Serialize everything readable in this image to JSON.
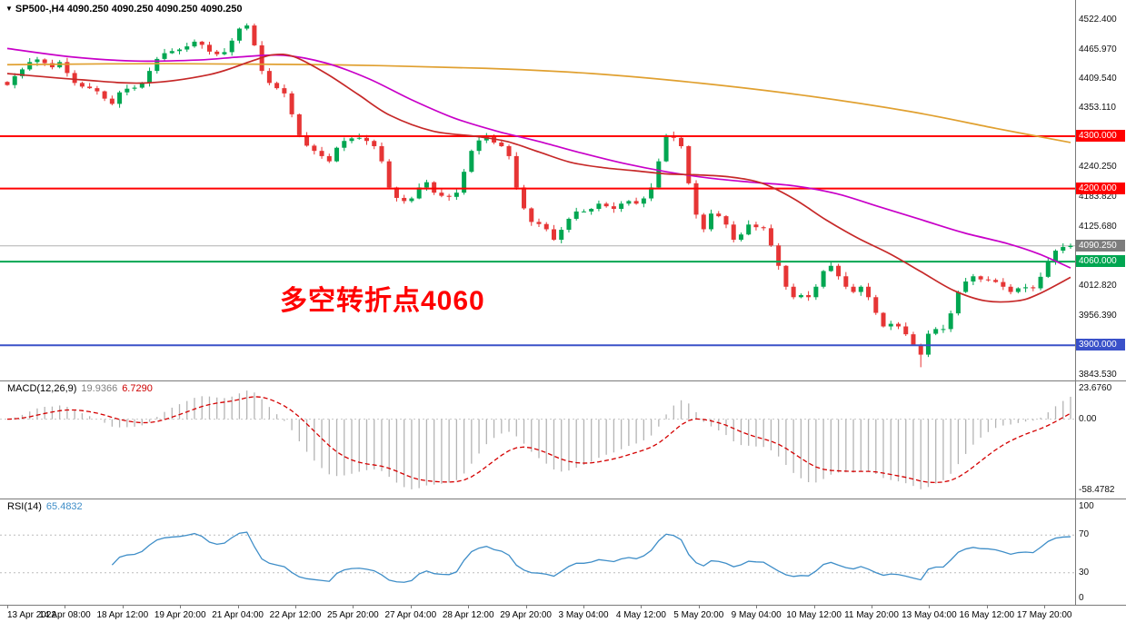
{
  "window": {
    "title_line": "SP500-,H4 4090.250 4090.250 4090.250 4090.250"
  },
  "annotation": {
    "text": "多空转折点4060",
    "color": "#ff0000"
  },
  "axis": {
    "price_ticks": [
      {
        "label": "4522.400",
        "price": 4522.4
      },
      {
        "label": "4465.970",
        "price": 4465.97
      },
      {
        "label": "4409.540",
        "price": 4409.54
      },
      {
        "label": "4353.110",
        "price": 4353.11
      },
      {
        "label": "4240.250",
        "price": 4240.25
      },
      {
        "label": "4183.820",
        "price": 4183.82
      },
      {
        "label": "4125.680",
        "price": 4125.68
      },
      {
        "label": "4012.820",
        "price": 4012.82
      },
      {
        "label": "3956.390",
        "price": 3956.39
      },
      {
        "label": "3843.530",
        "price": 3843.53
      }
    ],
    "price_badges": [
      {
        "label": "4300.000",
        "price": 4300,
        "bg": "#ff0000"
      },
      {
        "label": "4200.000",
        "price": 4200,
        "bg": "#ff0000"
      },
      {
        "label": "4090.250",
        "price": 4090.25,
        "bg": "#7d7d7d"
      },
      {
        "label": "4060.000",
        "price": 4060,
        "bg": "#00a651"
      },
      {
        "label": "3900.000",
        "price": 3900,
        "bg": "#3a51c9"
      }
    ]
  },
  "indicators": {
    "macd": {
      "label": "MACD(12,26,9)",
      "value_main": "19.9366",
      "value_signal": "6.7290",
      "axis_top": "23.6760",
      "axis_zero": "0.00",
      "axis_bottom": "-58.4782"
    },
    "rsi": {
      "label": "RSI(14)",
      "value": "65.4832",
      "axis": [
        "100",
        "70",
        "30",
        "0"
      ]
    }
  },
  "time_axis": {
    "labels": [
      "13 Apr 2022",
      "14 Apr 08:00",
      "18 Apr 12:00",
      "19 Apr 20:00",
      "21 Apr 04:00",
      "22 Apr 12:00",
      "25 Apr 20:00",
      "27 Apr 04:00",
      "28 Apr 12:00",
      "29 Apr 20:00",
      "3 May 04:00",
      "4 May 12:00",
      "5 May 20:00",
      "9 May 04:00",
      "10 May 12:00",
      "11 May 20:00",
      "13 May 04:00",
      "16 May 12:00",
      "17 May 20:00"
    ]
  },
  "chart_data": {
    "type": "candlestick",
    "symbol": "SP500-",
    "timeframe": "H4",
    "last_price": 4090.25,
    "ylim": [
      3832.6,
      4543.4
    ],
    "up_color": "#00a651",
    "down_color": "#e63535",
    "closes": [
      4398,
      4415,
      4428,
      4442,
      4447,
      4440,
      4432,
      4442,
      4421,
      4402,
      4395,
      4392,
      4386,
      4372,
      4362,
      4384,
      4391,
      4393,
      4402,
      4425,
      4448,
      4459,
      4463,
      4466,
      4472,
      4481,
      4475,
      4462,
      4457,
      4461,
      4483,
      4506,
      4512,
      4474,
      4425,
      4402,
      4392,
      4382,
      4342,
      4302,
      4282,
      4272,
      4262,
      4252,
      4278,
      4291,
      4296,
      4297,
      4291,
      4281,
      4252,
      4202,
      4182,
      4176,
      4181,
      4202,
      4212,
      4192,
      4186,
      4184,
      4192,
      4232,
      4272,
      4292,
      4302,
      4288,
      4281,
      4262,
      4202,
      4162,
      4136,
      4132,
      4122,
      4102,
      4121,
      4142,
      4156,
      4156,
      4161,
      4171,
      4166,
      4161,
      4171,
      4176,
      4171,
      4181,
      4202,
      4252,
      4302,
      4297,
      4281,
      4210,
      4150,
      4122,
      4152,
      4147,
      4131,
      4102,
      4112,
      4131,
      4126,
      4124,
      4091,
      4052,
      4012,
      3992,
      3996,
      3992,
      4012,
      4042,
      4052,
      4032,
      4012,
      4002,
      4012,
      3992,
      3962,
      3936,
      3941,
      3936,
      3921,
      3901,
      3882,
      3922,
      3931,
      3931,
      3961,
      4002,
      4022,
      4032,
      4026,
      4025,
      4021,
      4012,
      4002,
      4009,
      4011,
      4009,
      4031,
      4061,
      4081,
      4088,
      4090.25
    ],
    "high_extreme": {
      "index": 32,
      "price": 4516
    },
    "low_extreme": {
      "index": 122,
      "price": 3858
    },
    "bid_line": 4090.25,
    "hlines": [
      {
        "price": 4300,
        "color": "#ff0000",
        "width": 2
      },
      {
        "price": 4200,
        "color": "#ff0000",
        "width": 2
      },
      {
        "price": 4060,
        "color": "#00a651",
        "width": 2
      },
      {
        "price": 3900,
        "color": "#3a51c9",
        "width": 2
      }
    ],
    "moving_averages": [
      {
        "name": "slow-orange",
        "color": "#e0a030",
        "points": [
          [
            0,
            4437
          ],
          [
            0.15,
            4439
          ],
          [
            0.3,
            4437
          ],
          [
            0.45,
            4430
          ],
          [
            0.55,
            4420
          ],
          [
            0.65,
            4402
          ],
          [
            0.75,
            4378
          ],
          [
            0.85,
            4347
          ],
          [
            0.93,
            4315
          ],
          [
            1,
            4288
          ]
        ]
      },
      {
        "name": "medium-magenta",
        "color": "#c800c8",
        "points": [
          [
            0,
            4468
          ],
          [
            0.06,
            4452
          ],
          [
            0.12,
            4444
          ],
          [
            0.18,
            4446
          ],
          [
            0.22,
            4452
          ],
          [
            0.26,
            4455
          ],
          [
            0.3,
            4440
          ],
          [
            0.34,
            4410
          ],
          [
            0.38,
            4370
          ],
          [
            0.42,
            4335
          ],
          [
            0.46,
            4310
          ],
          [
            0.5,
            4290
          ],
          [
            0.54,
            4268
          ],
          [
            0.58,
            4248
          ],
          [
            0.62,
            4232
          ],
          [
            0.66,
            4220
          ],
          [
            0.7,
            4212
          ],
          [
            0.74,
            4205
          ],
          [
            0.78,
            4190
          ],
          [
            0.82,
            4165
          ],
          [
            0.86,
            4140
          ],
          [
            0.9,
            4115
          ],
          [
            0.94,
            4095
          ],
          [
            0.97,
            4075
          ],
          [
            1,
            4048
          ]
        ]
      },
      {
        "name": "fast-red",
        "color": "#c62828",
        "points": [
          [
            0,
            4420
          ],
          [
            0.07,
            4408
          ],
          [
            0.13,
            4402
          ],
          [
            0.19,
            4418
          ],
          [
            0.23,
            4444
          ],
          [
            0.25,
            4456
          ],
          [
            0.27,
            4452
          ],
          [
            0.3,
            4420
          ],
          [
            0.33,
            4380
          ],
          [
            0.36,
            4340
          ],
          [
            0.4,
            4310
          ],
          [
            0.44,
            4300
          ],
          [
            0.47,
            4290
          ],
          [
            0.5,
            4270
          ],
          [
            0.53,
            4250
          ],
          [
            0.56,
            4240
          ],
          [
            0.59,
            4234
          ],
          [
            0.62,
            4228
          ],
          [
            0.65,
            4226
          ],
          [
            0.68,
            4222
          ],
          [
            0.71,
            4210
          ],
          [
            0.74,
            4180
          ],
          [
            0.77,
            4140
          ],
          [
            0.8,
            4105
          ],
          [
            0.83,
            4075
          ],
          [
            0.86,
            4040
          ],
          [
            0.89,
            4005
          ],
          [
            0.92,
            3985
          ],
          [
            0.95,
            3985
          ],
          [
            0.97,
            3998
          ],
          [
            1,
            4030
          ]
        ]
      }
    ],
    "macd": {
      "fast": 12,
      "slow": 26,
      "signal_period": 9,
      "histogram_color": "#b4b4b4",
      "signal_color": "#d40000",
      "current_hist": 19.9366,
      "current_signal": 6.729,
      "axis_max": 23.676,
      "axis_min": -58.4782
    },
    "rsi": {
      "period": 14,
      "color": "#3f8ec8",
      "levels": [
        70,
        30
      ],
      "current": 65.4832,
      "range": [
        0,
        100
      ]
    }
  }
}
